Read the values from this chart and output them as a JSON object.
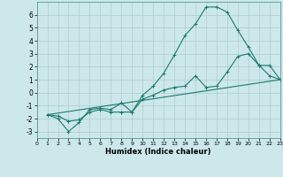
{
  "xlabel": "Humidex (Indice chaleur)",
  "xlim": [
    0,
    23
  ],
  "ylim": [
    -3.5,
    7.0
  ],
  "yticks": [
    -3,
    -2,
    -1,
    0,
    1,
    2,
    3,
    4,
    5,
    6
  ],
  "xticks": [
    0,
    1,
    2,
    3,
    4,
    5,
    6,
    7,
    8,
    9,
    10,
    11,
    12,
    13,
    14,
    15,
    16,
    17,
    18,
    19,
    20,
    21,
    22,
    23
  ],
  "background_color": "#cce8ea",
  "grid_color": "#b0cccc",
  "line_color": "#1a7a6e",
  "line1_x": [
    1,
    2,
    3,
    4,
    5,
    6,
    7,
    8,
    9,
    10,
    11,
    12,
    13,
    14,
    15,
    16,
    17,
    18,
    19,
    20,
    21,
    22,
    23
  ],
  "line1_y": [
    -1.7,
    -2.0,
    -3.0,
    -2.3,
    -1.3,
    -1.2,
    -1.3,
    -0.8,
    -1.5,
    -0.2,
    0.5,
    1.5,
    2.9,
    4.4,
    5.3,
    6.6,
    6.6,
    6.2,
    4.8,
    3.5,
    2.1,
    1.3,
    1.0
  ],
  "line2_x": [
    1,
    2,
    3,
    4,
    5,
    6,
    7,
    8,
    9,
    10,
    11,
    12,
    13,
    14,
    15,
    16,
    17,
    18,
    19,
    20,
    21,
    22,
    23
  ],
  "line2_y": [
    -1.7,
    -1.8,
    -2.2,
    -2.1,
    -1.5,
    -1.3,
    -1.5,
    -1.5,
    -1.5,
    -0.5,
    -0.2,
    0.2,
    0.4,
    0.5,
    1.3,
    0.4,
    0.5,
    1.6,
    2.8,
    3.0,
    2.1,
    2.1,
    1.0
  ],
  "line3_x": [
    1,
    23
  ],
  "line3_y": [
    -1.7,
    1.0
  ]
}
